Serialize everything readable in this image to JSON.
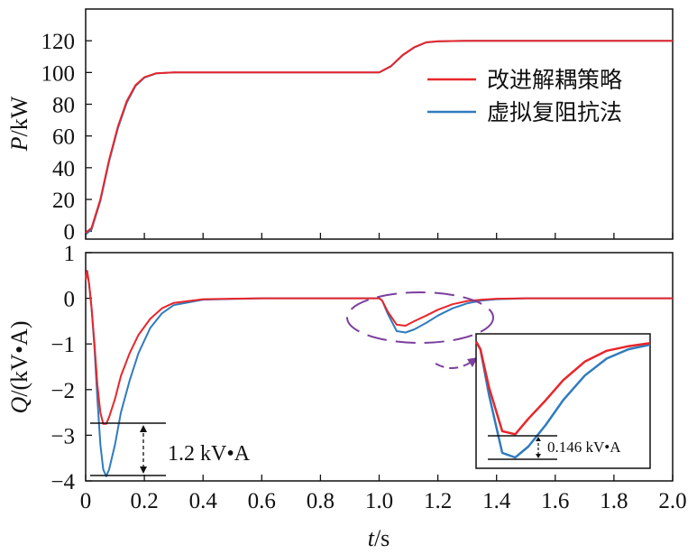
{
  "chart_data": [
    {
      "type": "line",
      "ylabel_italic": "P",
      "ylabel_unit": "/kW",
      "xlim": [
        0,
        2.0
      ],
      "ylim": [
        -5,
        140
      ],
      "yticks": [
        "0",
        "20",
        "40",
        "60",
        "80",
        "100",
        "120"
      ],
      "legend_position": "right",
      "series": [
        {
          "name": "改进解耦策略",
          "color": "#e8262b",
          "x": [
            0,
            0.02,
            0.05,
            0.08,
            0.11,
            0.14,
            0.17,
            0.2,
            0.24,
            0.3,
            0.5,
            1.0,
            1.04,
            1.08,
            1.12,
            1.16,
            1.2,
            1.3,
            1.6,
            2.0
          ],
          "values": [
            -1,
            2,
            20,
            45,
            66,
            82,
            92,
            97,
            99.5,
            100,
            100,
            100,
            104,
            111,
            116,
            119,
            119.7,
            120,
            120,
            120
          ]
        },
        {
          "name": "虚拟复阻抗法",
          "color": "#2f7bbf",
          "x": [
            0,
            0.02,
            0.05,
            0.08,
            0.11,
            0.14,
            0.17,
            0.2,
            0.24,
            0.3,
            0.5,
            1.0,
            1.04,
            1.08,
            1.12,
            1.16,
            1.2,
            1.3,
            1.6,
            2.0
          ],
          "values": [
            -2,
            1,
            19,
            44,
            65,
            81,
            91.5,
            96.8,
            99.4,
            100,
            100,
            100,
            103.8,
            110.8,
            115.8,
            118.9,
            119.6,
            120,
            120,
            120
          ]
        }
      ]
    },
    {
      "type": "line",
      "ylabel_italic": "Q",
      "ylabel_unit": "/(kV•A)",
      "xlabel_italic": "t",
      "xlabel_unit": "/s",
      "xlim": [
        0,
        2.0
      ],
      "ylim": [
        -4,
        1
      ],
      "yticks": [
        "1",
        "0",
        "−1",
        "−2",
        "−3",
        "−4"
      ],
      "xticks": [
        "0",
        "0.2",
        "0.4",
        "0.6",
        "0.8",
        "1.0",
        "1.2",
        "1.4",
        "1.6",
        "1.8",
        "2.0"
      ],
      "series": [
        {
          "name": "改进解耦策略",
          "color": "#e8262b",
          "x": [
            0,
            0.005,
            0.012,
            0.02,
            0.03,
            0.04,
            0.05,
            0.06,
            0.07,
            0.08,
            0.1,
            0.12,
            0.15,
            0.18,
            0.22,
            0.26,
            0.3,
            0.4,
            0.6,
            1.0,
            1.01,
            1.03,
            1.06,
            1.09,
            1.12,
            1.16,
            1.2,
            1.25,
            1.3,
            1.35,
            1.4,
            1.5,
            2.0
          ],
          "values": [
            0.4,
            0.6,
            0.3,
            -0.2,
            -1.0,
            -1.9,
            -2.5,
            -2.75,
            -2.75,
            -2.6,
            -2.2,
            -1.7,
            -1.2,
            -0.8,
            -0.45,
            -0.22,
            -0.1,
            -0.02,
            0,
            0,
            -0.05,
            -0.3,
            -0.58,
            -0.6,
            -0.5,
            -0.38,
            -0.25,
            -0.13,
            -0.06,
            -0.03,
            -0.01,
            0,
            0
          ]
        },
        {
          "name": "虚拟复阻抗法",
          "color": "#2f7bbf",
          "x": [
            0,
            0.005,
            0.012,
            0.02,
            0.03,
            0.04,
            0.05,
            0.06,
            0.07,
            0.08,
            0.1,
            0.12,
            0.15,
            0.18,
            0.22,
            0.26,
            0.3,
            0.4,
            0.6,
            1.0,
            1.01,
            1.03,
            1.06,
            1.09,
            1.12,
            1.16,
            1.2,
            1.25,
            1.3,
            1.35,
            1.4,
            1.5,
            2.0
          ],
          "values": [
            0.4,
            0.6,
            0.3,
            -0.2,
            -1.1,
            -2.2,
            -3.2,
            -3.75,
            -3.9,
            -3.75,
            -3.2,
            -2.5,
            -1.8,
            -1.2,
            -0.65,
            -0.33,
            -0.15,
            -0.03,
            0,
            0,
            -0.05,
            -0.35,
            -0.72,
            -0.75,
            -0.68,
            -0.54,
            -0.38,
            -0.22,
            -0.11,
            -0.05,
            -0.02,
            0,
            0
          ]
        }
      ],
      "annotations": {
        "diff_label": "1.2 kV•A",
        "inset_diff_label": "0.146 kV•A"
      }
    }
  ]
}
